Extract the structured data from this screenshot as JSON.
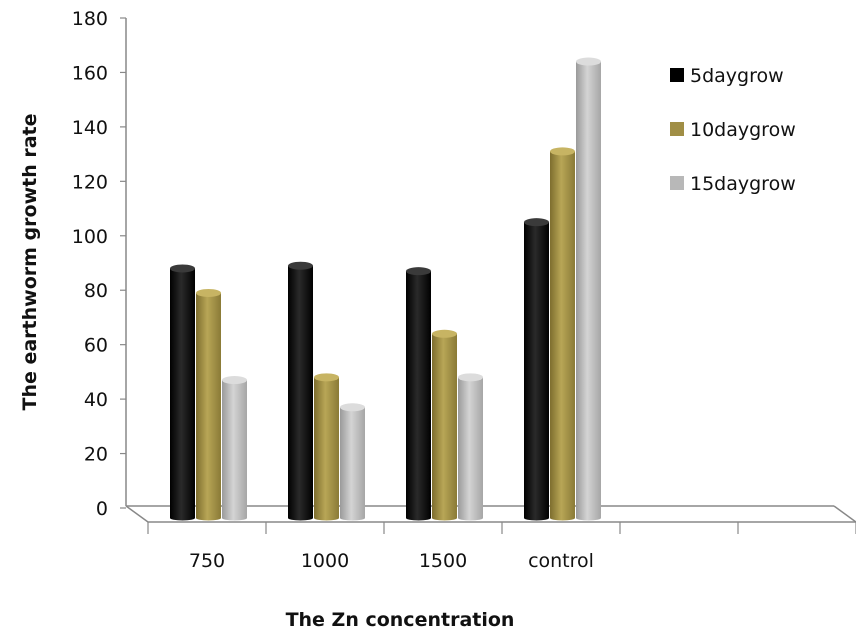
{
  "chart_data": {
    "type": "bar",
    "style": "3d-clustered-column",
    "xlabel": "The Zn concentration",
    "ylabel": "The earthworm growth rate",
    "categories": [
      "750",
      "1000",
      "1500",
      "control"
    ],
    "empty_category_slots": 2,
    "ylim": [
      0,
      180
    ],
    "yticks": [
      0,
      20,
      40,
      60,
      80,
      100,
      120,
      140,
      160,
      180
    ],
    "grid": false,
    "legend_position": "right",
    "series": [
      {
        "name": "5daygrow",
        "color": "#000000",
        "values": [
          88,
          89,
          87,
          105
        ]
      },
      {
        "name": "10daygrow",
        "color": "#a08e45",
        "values": [
          79,
          48,
          64,
          131
        ]
      },
      {
        "name": "15daygrow",
        "color": "#b8b8b8",
        "values": [
          47,
          37,
          48,
          164
        ]
      }
    ]
  }
}
